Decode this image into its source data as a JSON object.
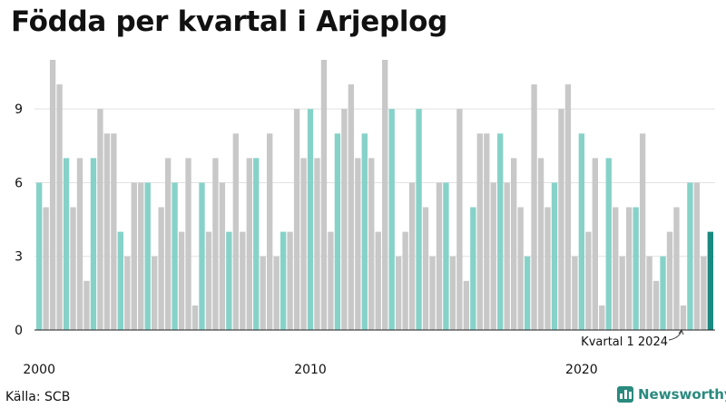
{
  "chart_data": {
    "type": "bar",
    "title": "Födda per kvartal i Arjeplog",
    "ylim": [
      0,
      11
    ],
    "yticks": [
      0,
      3,
      6,
      9
    ],
    "xticks": [
      {
        "index": 0,
        "label": "2000"
      },
      {
        "index": 40,
        "label": "2010"
      },
      {
        "index": 80,
        "label": "2020"
      }
    ],
    "start": "2000 Q1",
    "values": [
      6,
      5,
      11,
      10,
      7,
      5,
      7,
      2,
      7,
      9,
      8,
      8,
      4,
      3,
      6,
      6,
      6,
      3,
      5,
      7,
      6,
      4,
      7,
      1,
      6,
      4,
      7,
      6,
      4,
      8,
      4,
      7,
      7,
      3,
      8,
      3,
      4,
      4,
      9,
      7,
      9,
      7,
      11,
      4,
      8,
      9,
      10,
      7,
      8,
      7,
      4,
      11,
      9,
      3,
      4,
      6,
      9,
      5,
      3,
      6,
      6,
      3,
      9,
      2,
      5,
      8,
      8,
      6,
      8,
      6,
      7,
      5,
      3,
      10,
      7,
      5,
      6,
      9,
      10,
      3,
      8,
      4,
      7,
      1,
      7,
      5,
      3,
      5,
      5,
      8,
      3,
      2,
      3,
      4,
      5,
      1,
      6,
      6,
      3,
      4
    ],
    "q1_color": "#86d2c9",
    "other_color": "#c8c8c8",
    "highlight_color": "#1a8a80",
    "annotation": "Kvartal 1 2024"
  },
  "source": "Källa: SCB",
  "brand": "Newsworthy"
}
